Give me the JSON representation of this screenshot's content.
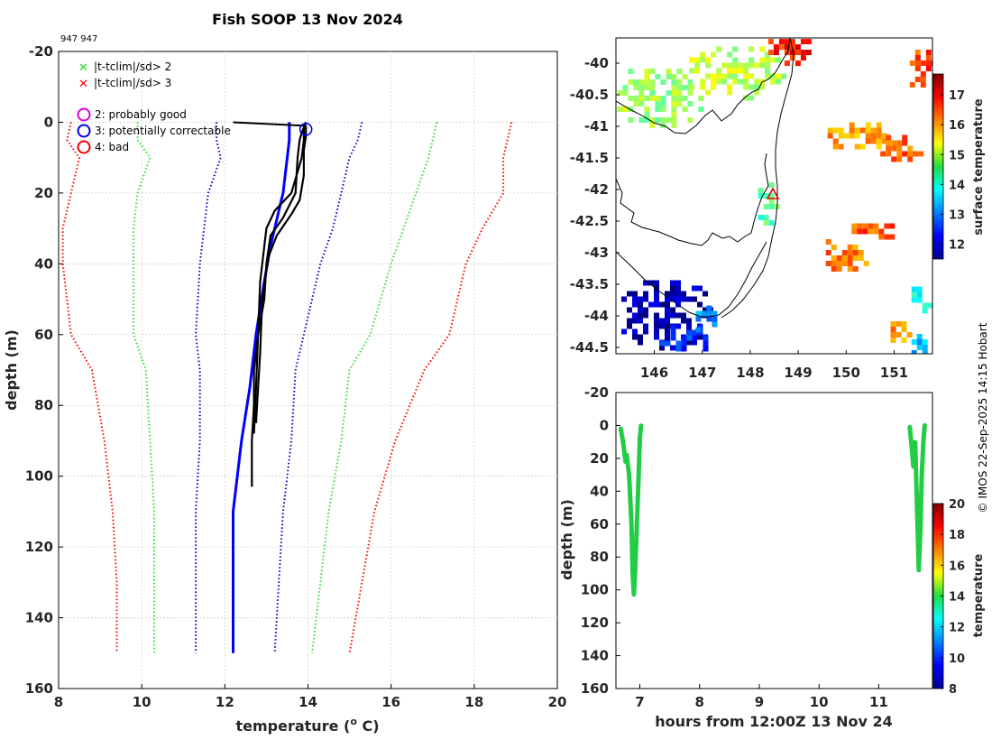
{
  "chart_data": [
    {
      "type": "line",
      "title": "Fish SOOP 13 Nov 2024",
      "subtitle": "947 947",
      "xlabel": "temperature (",
      "xlabel_sup": "o",
      "xlabel_end": " C)",
      "ylabel": "depth (m)",
      "xlim": [
        8,
        20
      ],
      "ylim": [
        160,
        -20
      ],
      "xticks": [
        "8",
        "10",
        "12",
        "14",
        "16",
        "18",
        "20"
      ],
      "yticks": [
        "-20",
        "0",
        "20",
        "40",
        "60",
        "80",
        "100",
        "120",
        "140",
        "160"
      ],
      "legend": {
        "cross_green": "|t-tclim|/sd> 2",
        "cross_red": "|t-tclim|/sd> 3",
        "circle_magenta": "2: probably good",
        "circle_blue": "3: potentially correctable",
        "circle_red": "4: bad"
      },
      "climatology": [
        {
          "name": "red_low",
          "color": "#ff0000",
          "t": [
            8.3,
            8.2,
            8.5,
            8.3,
            8.1,
            8.1,
            8.3,
            8.8,
            9.1,
            9.3,
            9.4,
            9.4
          ],
          "d": [
            0,
            5,
            10,
            20,
            30,
            40,
            60,
            70,
            90,
            110,
            130,
            150
          ]
        },
        {
          "name": "green_low",
          "color": "#33dd33",
          "t": [
            9.9,
            9.9,
            10.2,
            9.9,
            9.8,
            9.8,
            9.8,
            10.1,
            10.2,
            10.3,
            10.3,
            10.3
          ],
          "d": [
            0,
            5,
            10,
            20,
            30,
            40,
            60,
            70,
            90,
            110,
            130,
            150
          ]
        },
        {
          "name": "blue_low",
          "color": "#0000cc",
          "t": [
            11.8,
            11.8,
            11.9,
            11.6,
            11.5,
            11.4,
            11.3,
            11.4,
            11.4,
            11.3,
            11.3,
            11.3
          ],
          "d": [
            0,
            5,
            10,
            20,
            30,
            40,
            60,
            70,
            90,
            110,
            130,
            150
          ]
        },
        {
          "name": "blue_high",
          "color": "#0000cc",
          "t": [
            15.3,
            15.2,
            15.0,
            14.8,
            14.6,
            14.3,
            13.9,
            13.7,
            13.6,
            13.4,
            13.3,
            13.2
          ],
          "d": [
            0,
            5,
            10,
            20,
            30,
            40,
            60,
            70,
            90,
            110,
            130,
            150
          ]
        },
        {
          "name": "green_high",
          "color": "#33dd33",
          "t": [
            17.1,
            17.0,
            16.9,
            16.6,
            16.3,
            16.0,
            15.5,
            15.0,
            14.8,
            14.5,
            14.3,
            14.1
          ],
          "d": [
            0,
            5,
            10,
            20,
            30,
            40,
            60,
            70,
            90,
            110,
            130,
            150
          ]
        },
        {
          "name": "red_high",
          "color": "#ff0000",
          "t": [
            18.9,
            18.8,
            18.7,
            18.7,
            18.2,
            17.8,
            17.4,
            16.8,
            16.1,
            15.6,
            15.3,
            15.0
          ],
          "d": [
            0,
            5,
            10,
            20,
            30,
            40,
            60,
            70,
            90,
            110,
            130,
            150
          ]
        }
      ],
      "profiles": [
        {
          "name": "cast_blue",
          "color": "#0000ff",
          "t": [
            13.55,
            13.55,
            13.5,
            13.45,
            13.4,
            13.3,
            13.1,
            12.95,
            12.75,
            12.6,
            12.4,
            12.2,
            12.2,
            12.2,
            12.2
          ],
          "d": [
            0,
            5,
            10,
            15,
            20,
            25,
            35,
            45,
            60,
            75,
            90,
            110,
            120,
            130,
            150
          ]
        },
        {
          "name": "cast_black_1",
          "color": "#000000",
          "t": [
            13.95,
            13.9,
            13.9,
            13.85,
            13.6,
            13.2,
            13.0,
            12.95,
            12.85,
            12.8,
            12.7,
            12.7,
            12.65,
            12.65
          ],
          "d": [
            0,
            2,
            5,
            10,
            20,
            25,
            30,
            35,
            45,
            60,
            70,
            80,
            90,
            103
          ]
        },
        {
          "name": "cast_black_2",
          "color": "#000000",
          "t": [
            13.95,
            13.85,
            13.8,
            13.75,
            13.7,
            13.4,
            13.1,
            13.0,
            12.95,
            12.8,
            12.75,
            12.7
          ],
          "d": [
            0,
            3,
            5,
            10,
            20,
            27,
            32,
            40,
            50,
            60,
            75,
            88
          ]
        },
        {
          "name": "cast_black_3",
          "color": "#000000",
          "t": [
            13.95,
            13.95,
            13.9,
            13.9,
            13.8,
            13.6,
            13.25,
            13.05,
            12.9,
            12.85,
            12.8,
            12.75
          ],
          "d": [
            1,
            4,
            8,
            15,
            22,
            26,
            32,
            38,
            50,
            65,
            75,
            85
          ]
        }
      ],
      "surface_segment": {
        "t": [
          12.2,
          13.95
        ],
        "d": [
          0,
          1
        ]
      },
      "flag_circle": {
        "t": 13.95,
        "d": 2,
        "flag": "3: potentially correctable"
      }
    },
    {
      "type": "heatmap",
      "xlim": [
        145.2,
        151.8
      ],
      "ylim": [
        -44.6,
        -39.6
      ],
      "xticks": [
        "146",
        "147",
        "148",
        "149",
        "150",
        "151"
      ],
      "yticks": [
        "-40",
        "-40.5",
        "-41",
        "-41.5",
        "-42",
        "-42.5",
        "-43",
        "-43.5",
        "-44",
        "-44.5"
      ],
      "colorbar_label": "surface temperature",
      "colorbar_ticks": [
        "12",
        "13",
        "14",
        "15",
        "16",
        "17"
      ],
      "clim": [
        11.5,
        17.7
      ],
      "marker": {
        "lon": 148.5,
        "lat": -42.1,
        "symbol": "triangle"
      },
      "patches": [
        {
          "lon": 146.0,
          "lat": -40.5,
          "rx": 1.0,
          "ry": 0.5,
          "val": 14.8
        },
        {
          "lon": 147.6,
          "lat": -40.1,
          "rx": 1.1,
          "ry": 0.45,
          "val": 15.0
        },
        {
          "lon": 148.8,
          "lat": -39.75,
          "rx": 0.65,
          "ry": 0.22,
          "val": 16.8
        },
        {
          "lon": 151.45,
          "lat": -40.05,
          "rx": 0.35,
          "ry": 0.35,
          "val": 16.5
        },
        {
          "lon": 150.2,
          "lat": -41.1,
          "rx": 0.7,
          "ry": 0.25,
          "val": 16.0
        },
        {
          "lon": 151.1,
          "lat": -41.3,
          "rx": 0.5,
          "ry": 0.25,
          "val": 16.3
        },
        {
          "lon": 148.3,
          "lat": -42.2,
          "rx": 0.25,
          "ry": 0.4,
          "val": 14.3
        },
        {
          "lon": 149.9,
          "lat": -43.0,
          "rx": 0.55,
          "ry": 0.3,
          "val": 16.2
        },
        {
          "lon": 150.6,
          "lat": -42.6,
          "rx": 0.6,
          "ry": 0.15,
          "val": 16.4
        },
        {
          "lon": 146.2,
          "lat": -43.95,
          "rx": 1.0,
          "ry": 0.6,
          "val": 11.8
        },
        {
          "lon": 146.6,
          "lat": -44.3,
          "rx": 0.6,
          "ry": 0.25,
          "val": 12.6
        },
        {
          "lon": 147.1,
          "lat": -44.0,
          "rx": 0.35,
          "ry": 0.25,
          "val": 13.1
        },
        {
          "lon": 151.0,
          "lat": -44.2,
          "rx": 0.3,
          "ry": 0.2,
          "val": 16.0
        },
        {
          "lon": 151.5,
          "lat": -43.7,
          "rx": 0.25,
          "ry": 0.25,
          "val": 14.0
        },
        {
          "lon": 151.5,
          "lat": -44.4,
          "rx": 0.25,
          "ry": 0.2,
          "val": 13.4
        }
      ]
    },
    {
      "type": "scatter",
      "xlabel": "hours from 12:00Z 13 Nov 24",
      "ylabel": "depth (m)",
      "xlim": [
        6.6,
        11.9
      ],
      "ylim": [
        160,
        -20
      ],
      "xticks": [
        "7",
        "8",
        "9",
        "10",
        "11"
      ],
      "yticks": [
        "-20",
        "0",
        "20",
        "40",
        "60",
        "80",
        "100",
        "120",
        "140",
        "160"
      ],
      "colorbar_label": "temperature",
      "colorbar_ticks": [
        "8",
        "10",
        "12",
        "14",
        "16",
        "18",
        "20"
      ],
      "clim": [
        8,
        20
      ],
      "tracks": [
        {
          "name": "casts_group_1",
          "color": "#22cc44",
          "h": [
            6.68,
            6.72,
            6.76,
            6.78,
            6.82,
            6.86,
            6.88,
            6.9,
            6.92,
            6.95,
            6.98,
            7.0,
            7.02
          ],
          "d": [
            2,
            10,
            22,
            18,
            30,
            60,
            90,
            103,
            90,
            60,
            30,
            8,
            0
          ]
        },
        {
          "name": "casts_group_2",
          "color": "#22cc44",
          "h": [
            11.52,
            11.55,
            11.58,
            11.61,
            11.63,
            11.65,
            11.67,
            11.7,
            11.72,
            11.75,
            11.77
          ],
          "d": [
            1,
            12,
            25,
            10,
            35,
            60,
            88,
            60,
            30,
            8,
            0
          ]
        }
      ]
    }
  ],
  "credit": "© IMOS 22-Sep-2025 14:15 Hobart"
}
